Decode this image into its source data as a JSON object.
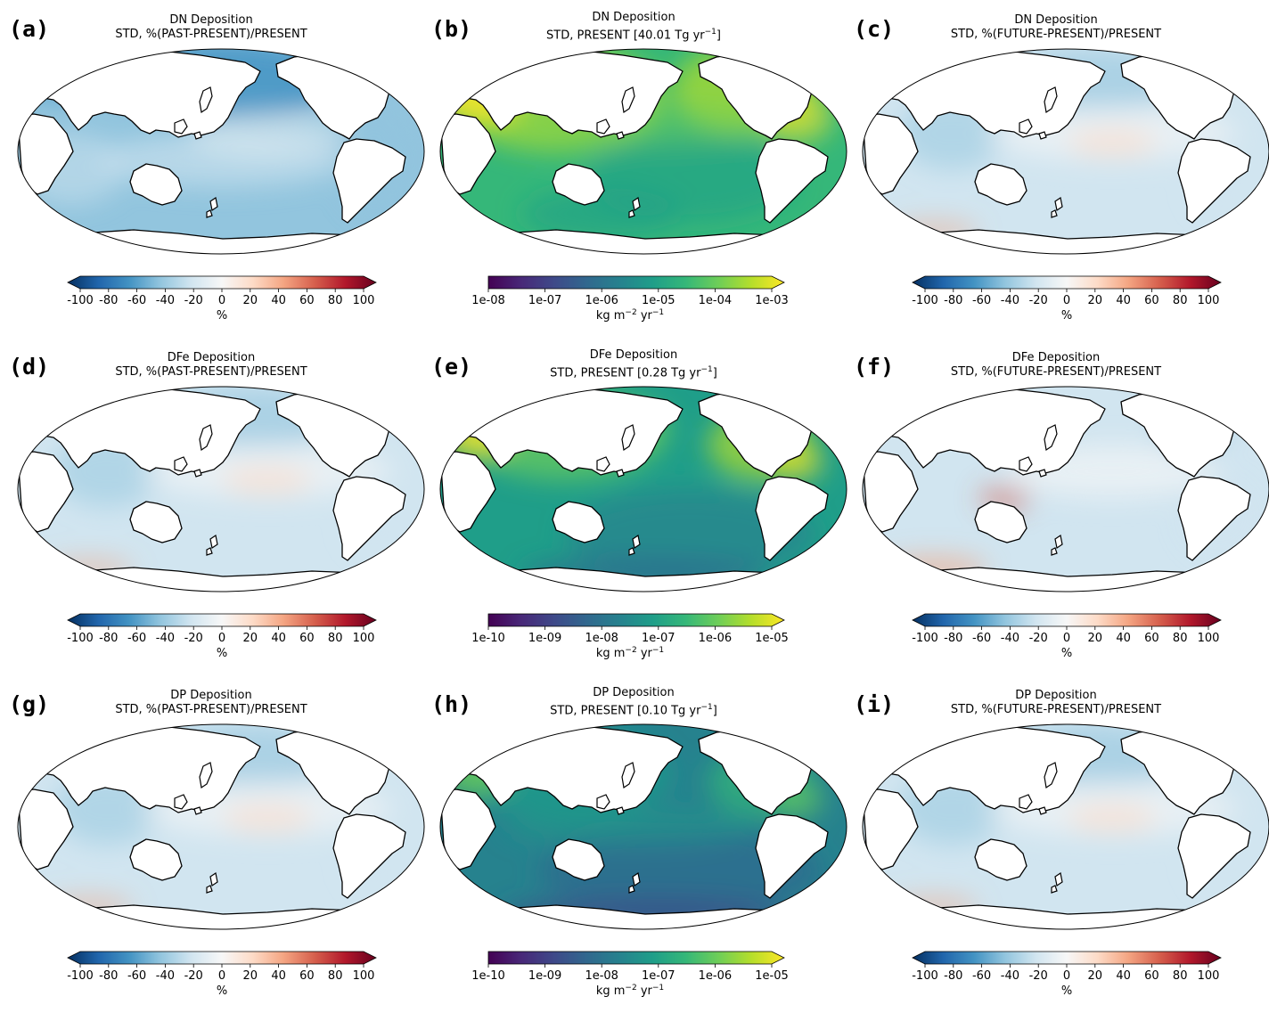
{
  "colors": {
    "div_stops": [
      "#053061",
      "#2166ac",
      "#4393c3",
      "#92c5de",
      "#d1e5f0",
      "#f7f7f7",
      "#fddbc7",
      "#f4a582",
      "#d6604d",
      "#b2182b",
      "#67001f"
    ],
    "vir_stops": [
      "#440154",
      "#482878",
      "#3e4989",
      "#31688e",
      "#26828e",
      "#1f9e89",
      "#35b779",
      "#6ece58",
      "#b5de2b",
      "#fde725"
    ],
    "land": "#ffffff",
    "coast": "#000000"
  },
  "panels": [
    {
      "id": "a",
      "letter": "(a)",
      "title1": "DN Deposition",
      "title2": "STD, %(PAST-PRESENT)/PRESENT",
      "kind": "diverging",
      "style": "blue",
      "ticks": [
        "-100",
        "-80",
        "-60",
        "-40",
        "-20",
        "0",
        "20",
        "40",
        "60",
        "80",
        "100"
      ],
      "unit": "%"
    },
    {
      "id": "b",
      "letter": "(b)",
      "title1": "DN Deposition",
      "title2": "STD, PRESENT [40.01 Tg yr",
      "title2_sup": "−1",
      "title2_end": "]",
      "kind": "viridis",
      "style": "high",
      "ticks": [
        "1e-08",
        "1e-07",
        "1e-06",
        "1e-05",
        "1e-04",
        "1e-03"
      ],
      "unit": "kg m",
      "unit_sup1": "−2",
      "unit_mid": " yr",
      "unit_sup2": "−1"
    },
    {
      "id": "c",
      "letter": "(c)",
      "title1": "DN Deposition",
      "title2": "STD, %(FUTURE-PRESENT)/PRESENT",
      "kind": "diverging",
      "style": "light",
      "ticks": [
        "-100",
        "-80",
        "-60",
        "-40",
        "-20",
        "0",
        "20",
        "40",
        "60",
        "80",
        "100"
      ],
      "unit": "%"
    },
    {
      "id": "d",
      "letter": "(d)",
      "title1": "DFe Deposition",
      "title2": "STD, %(PAST-PRESENT)/PRESENT",
      "kind": "diverging",
      "style": "light",
      "ticks": [
        "-100",
        "-80",
        "-60",
        "-40",
        "-20",
        "0",
        "20",
        "40",
        "60",
        "80",
        "100"
      ],
      "unit": "%"
    },
    {
      "id": "e",
      "letter": "(e)",
      "title1": "DFe Deposition",
      "title2": "STD, PRESENT [0.28 Tg yr",
      "title2_sup": "−1",
      "title2_end": "]",
      "kind": "viridis",
      "style": "mid",
      "ticks": [
        "1e-10",
        "1e-09",
        "1e-08",
        "1e-07",
        "1e-06",
        "1e-05"
      ],
      "unit": "kg m",
      "unit_sup1": "−2",
      "unit_mid": " yr",
      "unit_sup2": "−1"
    },
    {
      "id": "f",
      "letter": "(f)",
      "title1": "DFe Deposition",
      "title2": "STD, %(FUTURE-PRESENT)/PRESENT",
      "kind": "diverging",
      "style": "pale",
      "ticks": [
        "-100",
        "-80",
        "-60",
        "-40",
        "-20",
        "0",
        "20",
        "40",
        "60",
        "80",
        "100"
      ],
      "unit": "%"
    },
    {
      "id": "g",
      "letter": "(g)",
      "title1": "DP Deposition",
      "title2": "STD, %(PAST-PRESENT)/PRESENT",
      "kind": "diverging",
      "style": "light",
      "ticks": [
        "-100",
        "-80",
        "-60",
        "-40",
        "-20",
        "0",
        "20",
        "40",
        "60",
        "80",
        "100"
      ],
      "unit": "%"
    },
    {
      "id": "h",
      "letter": "(h)",
      "title1": "DP Deposition",
      "title2": "STD, PRESENT [0.10 Tg yr",
      "title2_sup": "−1",
      "title2_end": "]",
      "kind": "viridis",
      "style": "low",
      "ticks": [
        "1e-10",
        "1e-09",
        "1e-08",
        "1e-07",
        "1e-06",
        "1e-05"
      ],
      "unit": "kg m",
      "unit_sup1": "−2",
      "unit_mid": " yr",
      "unit_sup2": "−1"
    },
    {
      "id": "i",
      "letter": "(i)",
      "title1": "DP Deposition",
      "title2": "STD, %(FUTURE-PRESENT)/PRESENT",
      "kind": "diverging",
      "style": "light",
      "ticks": [
        "-100",
        "-80",
        "-60",
        "-40",
        "-20",
        "0",
        "20",
        "40",
        "60",
        "80",
        "100"
      ],
      "unit": "%"
    }
  ]
}
